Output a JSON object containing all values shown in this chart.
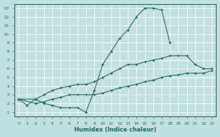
{
  "xlabel": "Humidex (Indice chaleur)",
  "bg_color": "#c2e0e0",
  "grid_color": "#ffffff",
  "line_color": "#1a6b5a",
  "xlim": [
    -0.5,
    23.5
  ],
  "ylim": [
    0.5,
    13.5
  ],
  "xticks": [
    0,
    1,
    2,
    3,
    4,
    5,
    6,
    7,
    8,
    9,
    10,
    11,
    12,
    13,
    14,
    15,
    16,
    17,
    18,
    19,
    20,
    21,
    22,
    23
  ],
  "yticks": [
    1,
    2,
    3,
    4,
    5,
    6,
    7,
    8,
    9,
    10,
    11,
    12,
    13
  ],
  "line1_x": [
    0,
    1,
    2,
    3,
    4,
    5,
    6,
    7,
    8,
    9,
    10,
    11,
    12,
    13,
    14,
    15,
    16,
    17,
    18
  ],
  "line1_y": [
    2.5,
    1.8,
    2.5,
    2.0,
    1.8,
    1.5,
    1.5,
    1.5,
    1.0,
    3.5,
    6.5,
    8.0,
    9.5,
    10.5,
    12.0,
    13.0,
    13.0,
    12.8,
    9.0
  ],
  "line2_x": [
    0,
    2,
    3,
    4,
    5,
    6,
    7,
    8,
    9,
    10,
    11,
    12,
    13,
    14,
    15,
    16,
    17,
    18,
    19,
    20,
    21,
    22,
    23
  ],
  "line2_y": [
    2.5,
    2.5,
    3.0,
    3.5,
    3.8,
    4.0,
    4.2,
    4.2,
    4.5,
    5.0,
    5.5,
    6.0,
    6.5,
    6.5,
    6.8,
    7.0,
    7.2,
    7.5,
    7.5,
    7.5,
    6.5,
    6.0,
    6.0
  ],
  "line3_x": [
    0,
    2,
    3,
    4,
    5,
    6,
    7,
    8,
    9,
    10,
    11,
    12,
    13,
    14,
    15,
    16,
    17,
    18,
    19,
    20,
    21,
    22,
    23
  ],
  "line3_y": [
    2.5,
    2.0,
    2.2,
    2.5,
    2.7,
    3.0,
    3.0,
    3.0,
    3.0,
    3.2,
    3.5,
    3.8,
    4.0,
    4.2,
    4.5,
    4.7,
    5.0,
    5.2,
    5.3,
    5.5,
    5.5,
    5.5,
    5.8
  ]
}
